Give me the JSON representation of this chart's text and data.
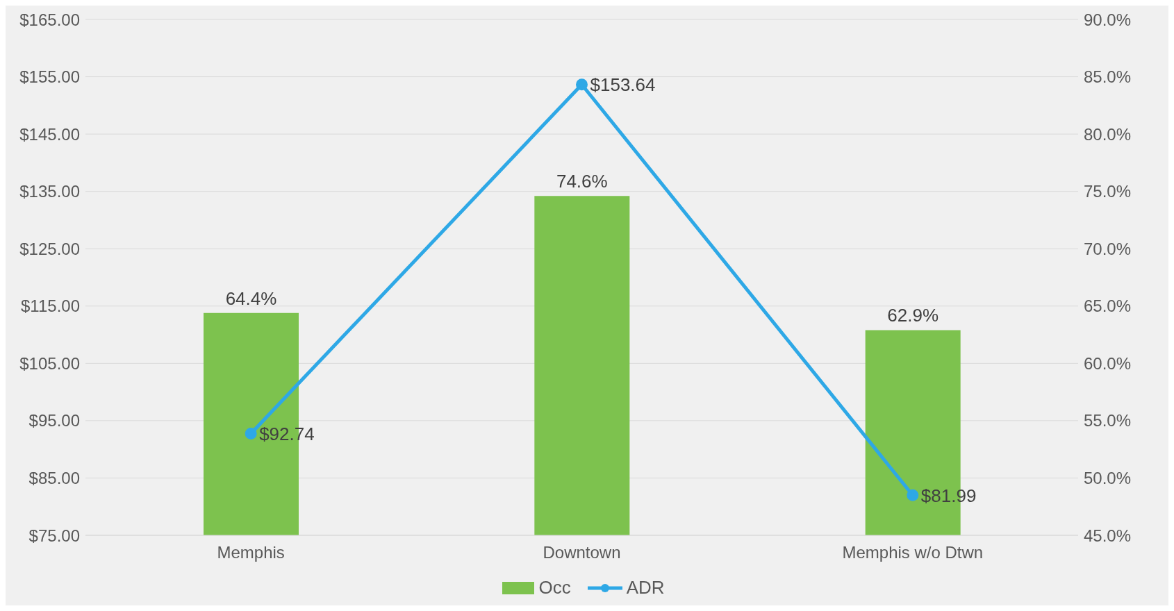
{
  "chart_data": {
    "type": "bar",
    "categories": [
      "Memphis",
      "Downtown",
      "Memphis w/o Dtwn"
    ],
    "series": [
      {
        "name": "Occ",
        "axis": "y2",
        "color": "#7dc24e",
        "values": [
          64.4,
          74.6,
          62.9
        ],
        "value_labels": [
          "64.4%",
          "74.6%",
          "62.9%"
        ]
      },
      {
        "name": "ADR",
        "type": "line",
        "axis": "y",
        "color": "#2ea8e6",
        "marker": "circle",
        "values": [
          92.74,
          153.64,
          81.99
        ],
        "value_labels": [
          "$92.74",
          "$153.64",
          "$81.99"
        ]
      }
    ],
    "ylim": [
      75,
      165
    ],
    "yticks": [
      {
        "value": 75,
        "label": "$75.00"
      },
      {
        "value": 85,
        "label": "$85.00"
      },
      {
        "value": 95,
        "label": "$95.00"
      },
      {
        "value": 105,
        "label": "$105.00"
      },
      {
        "value": 115,
        "label": "$115.00"
      },
      {
        "value": 125,
        "label": "$125.00"
      },
      {
        "value": 135,
        "label": "$135.00"
      },
      {
        "value": 145,
        "label": "$145.00"
      },
      {
        "value": 155,
        "label": "$155.00"
      },
      {
        "value": 165,
        "label": "$165.00"
      }
    ],
    "y2lim": [
      45,
      90
    ],
    "y2ticks": [
      {
        "value": 45,
        "label": "45.0%"
      },
      {
        "value": 50,
        "label": "50.0%"
      },
      {
        "value": 55,
        "label": "55.0%"
      },
      {
        "value": 60,
        "label": "60.0%"
      },
      {
        "value": 65,
        "label": "65.0%"
      },
      {
        "value": 70,
        "label": "70.0%"
      },
      {
        "value": 75,
        "label": "75.0%"
      },
      {
        "value": 80,
        "label": "80.0%"
      },
      {
        "value": 85,
        "label": "85.0%"
      },
      {
        "value": 90,
        "label": "90.0%"
      }
    ],
    "grid": "y",
    "legend": "bottom"
  }
}
